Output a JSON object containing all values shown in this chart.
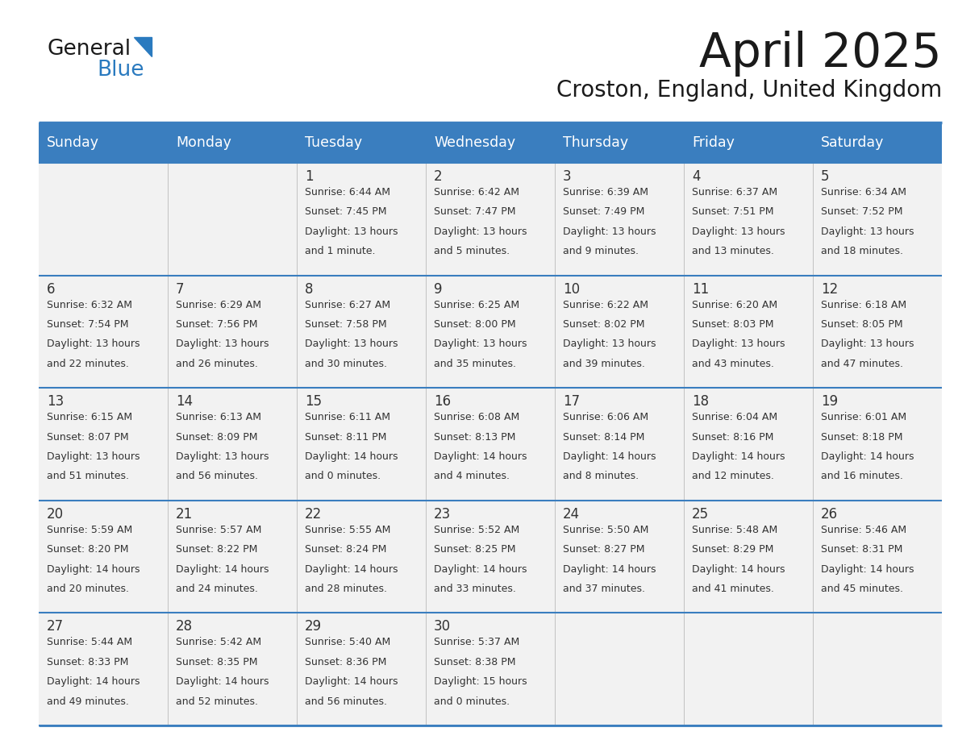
{
  "title": "April 2025",
  "subtitle": "Croston, England, United Kingdom",
  "days_of_week": [
    "Sunday",
    "Monday",
    "Tuesday",
    "Wednesday",
    "Thursday",
    "Friday",
    "Saturday"
  ],
  "header_bg_color": "#3a7ebf",
  "header_text_color": "#ffffff",
  "cell_bg_color": "#f2f2f2",
  "row_line_color": "#3a7ebf",
  "text_color": "#333333",
  "title_color": "#1a1a1a",
  "subtitle_color": "#1a1a1a",
  "weeks": [
    [
      {
        "day": null,
        "data": null
      },
      {
        "day": null,
        "data": null
      },
      {
        "day": 1,
        "data": {
          "sunrise": "6:44 AM",
          "sunset": "7:45 PM",
          "daylight": "13 hours and 1 minute."
        }
      },
      {
        "day": 2,
        "data": {
          "sunrise": "6:42 AM",
          "sunset": "7:47 PM",
          "daylight": "13 hours and 5 minutes."
        }
      },
      {
        "day": 3,
        "data": {
          "sunrise": "6:39 AM",
          "sunset": "7:49 PM",
          "daylight": "13 hours and 9 minutes."
        }
      },
      {
        "day": 4,
        "data": {
          "sunrise": "6:37 AM",
          "sunset": "7:51 PM",
          "daylight": "13 hours and 13 minutes."
        }
      },
      {
        "day": 5,
        "data": {
          "sunrise": "6:34 AM",
          "sunset": "7:52 PM",
          "daylight": "13 hours and 18 minutes."
        }
      }
    ],
    [
      {
        "day": 6,
        "data": {
          "sunrise": "6:32 AM",
          "sunset": "7:54 PM",
          "daylight": "13 hours and 22 minutes."
        }
      },
      {
        "day": 7,
        "data": {
          "sunrise": "6:29 AM",
          "sunset": "7:56 PM",
          "daylight": "13 hours and 26 minutes."
        }
      },
      {
        "day": 8,
        "data": {
          "sunrise": "6:27 AM",
          "sunset": "7:58 PM",
          "daylight": "13 hours and 30 minutes."
        }
      },
      {
        "day": 9,
        "data": {
          "sunrise": "6:25 AM",
          "sunset": "8:00 PM",
          "daylight": "13 hours and 35 minutes."
        }
      },
      {
        "day": 10,
        "data": {
          "sunrise": "6:22 AM",
          "sunset": "8:02 PM",
          "daylight": "13 hours and 39 minutes."
        }
      },
      {
        "day": 11,
        "data": {
          "sunrise": "6:20 AM",
          "sunset": "8:03 PM",
          "daylight": "13 hours and 43 minutes."
        }
      },
      {
        "day": 12,
        "data": {
          "sunrise": "6:18 AM",
          "sunset": "8:05 PM",
          "daylight": "13 hours and 47 minutes."
        }
      }
    ],
    [
      {
        "day": 13,
        "data": {
          "sunrise": "6:15 AM",
          "sunset": "8:07 PM",
          "daylight": "13 hours and 51 minutes."
        }
      },
      {
        "day": 14,
        "data": {
          "sunrise": "6:13 AM",
          "sunset": "8:09 PM",
          "daylight": "13 hours and 56 minutes."
        }
      },
      {
        "day": 15,
        "data": {
          "sunrise": "6:11 AM",
          "sunset": "8:11 PM",
          "daylight": "14 hours and 0 minutes."
        }
      },
      {
        "day": 16,
        "data": {
          "sunrise": "6:08 AM",
          "sunset": "8:13 PM",
          "daylight": "14 hours and 4 minutes."
        }
      },
      {
        "day": 17,
        "data": {
          "sunrise": "6:06 AM",
          "sunset": "8:14 PM",
          "daylight": "14 hours and 8 minutes."
        }
      },
      {
        "day": 18,
        "data": {
          "sunrise": "6:04 AM",
          "sunset": "8:16 PM",
          "daylight": "14 hours and 12 minutes."
        }
      },
      {
        "day": 19,
        "data": {
          "sunrise": "6:01 AM",
          "sunset": "8:18 PM",
          "daylight": "14 hours and 16 minutes."
        }
      }
    ],
    [
      {
        "day": 20,
        "data": {
          "sunrise": "5:59 AM",
          "sunset": "8:20 PM",
          "daylight": "14 hours and 20 minutes."
        }
      },
      {
        "day": 21,
        "data": {
          "sunrise": "5:57 AM",
          "sunset": "8:22 PM",
          "daylight": "14 hours and 24 minutes."
        }
      },
      {
        "day": 22,
        "data": {
          "sunrise": "5:55 AM",
          "sunset": "8:24 PM",
          "daylight": "14 hours and 28 minutes."
        }
      },
      {
        "day": 23,
        "data": {
          "sunrise": "5:52 AM",
          "sunset": "8:25 PM",
          "daylight": "14 hours and 33 minutes."
        }
      },
      {
        "day": 24,
        "data": {
          "sunrise": "5:50 AM",
          "sunset": "8:27 PM",
          "daylight": "14 hours and 37 minutes."
        }
      },
      {
        "day": 25,
        "data": {
          "sunrise": "5:48 AM",
          "sunset": "8:29 PM",
          "daylight": "14 hours and 41 minutes."
        }
      },
      {
        "day": 26,
        "data": {
          "sunrise": "5:46 AM",
          "sunset": "8:31 PM",
          "daylight": "14 hours and 45 minutes."
        }
      }
    ],
    [
      {
        "day": 27,
        "data": {
          "sunrise": "5:44 AM",
          "sunset": "8:33 PM",
          "daylight": "14 hours and 49 minutes."
        }
      },
      {
        "day": 28,
        "data": {
          "sunrise": "5:42 AM",
          "sunset": "8:35 PM",
          "daylight": "14 hours and 52 minutes."
        }
      },
      {
        "day": 29,
        "data": {
          "sunrise": "5:40 AM",
          "sunset": "8:36 PM",
          "daylight": "14 hours and 56 minutes."
        }
      },
      {
        "day": 30,
        "data": {
          "sunrise": "5:37 AM",
          "sunset": "8:38 PM",
          "daylight": "15 hours and 0 minutes."
        }
      },
      {
        "day": null,
        "data": null
      },
      {
        "day": null,
        "data": null
      },
      {
        "day": null,
        "data": null
      }
    ]
  ],
  "logo_color_general": "#1a1a1a",
  "logo_color_blue": "#2a7abf"
}
